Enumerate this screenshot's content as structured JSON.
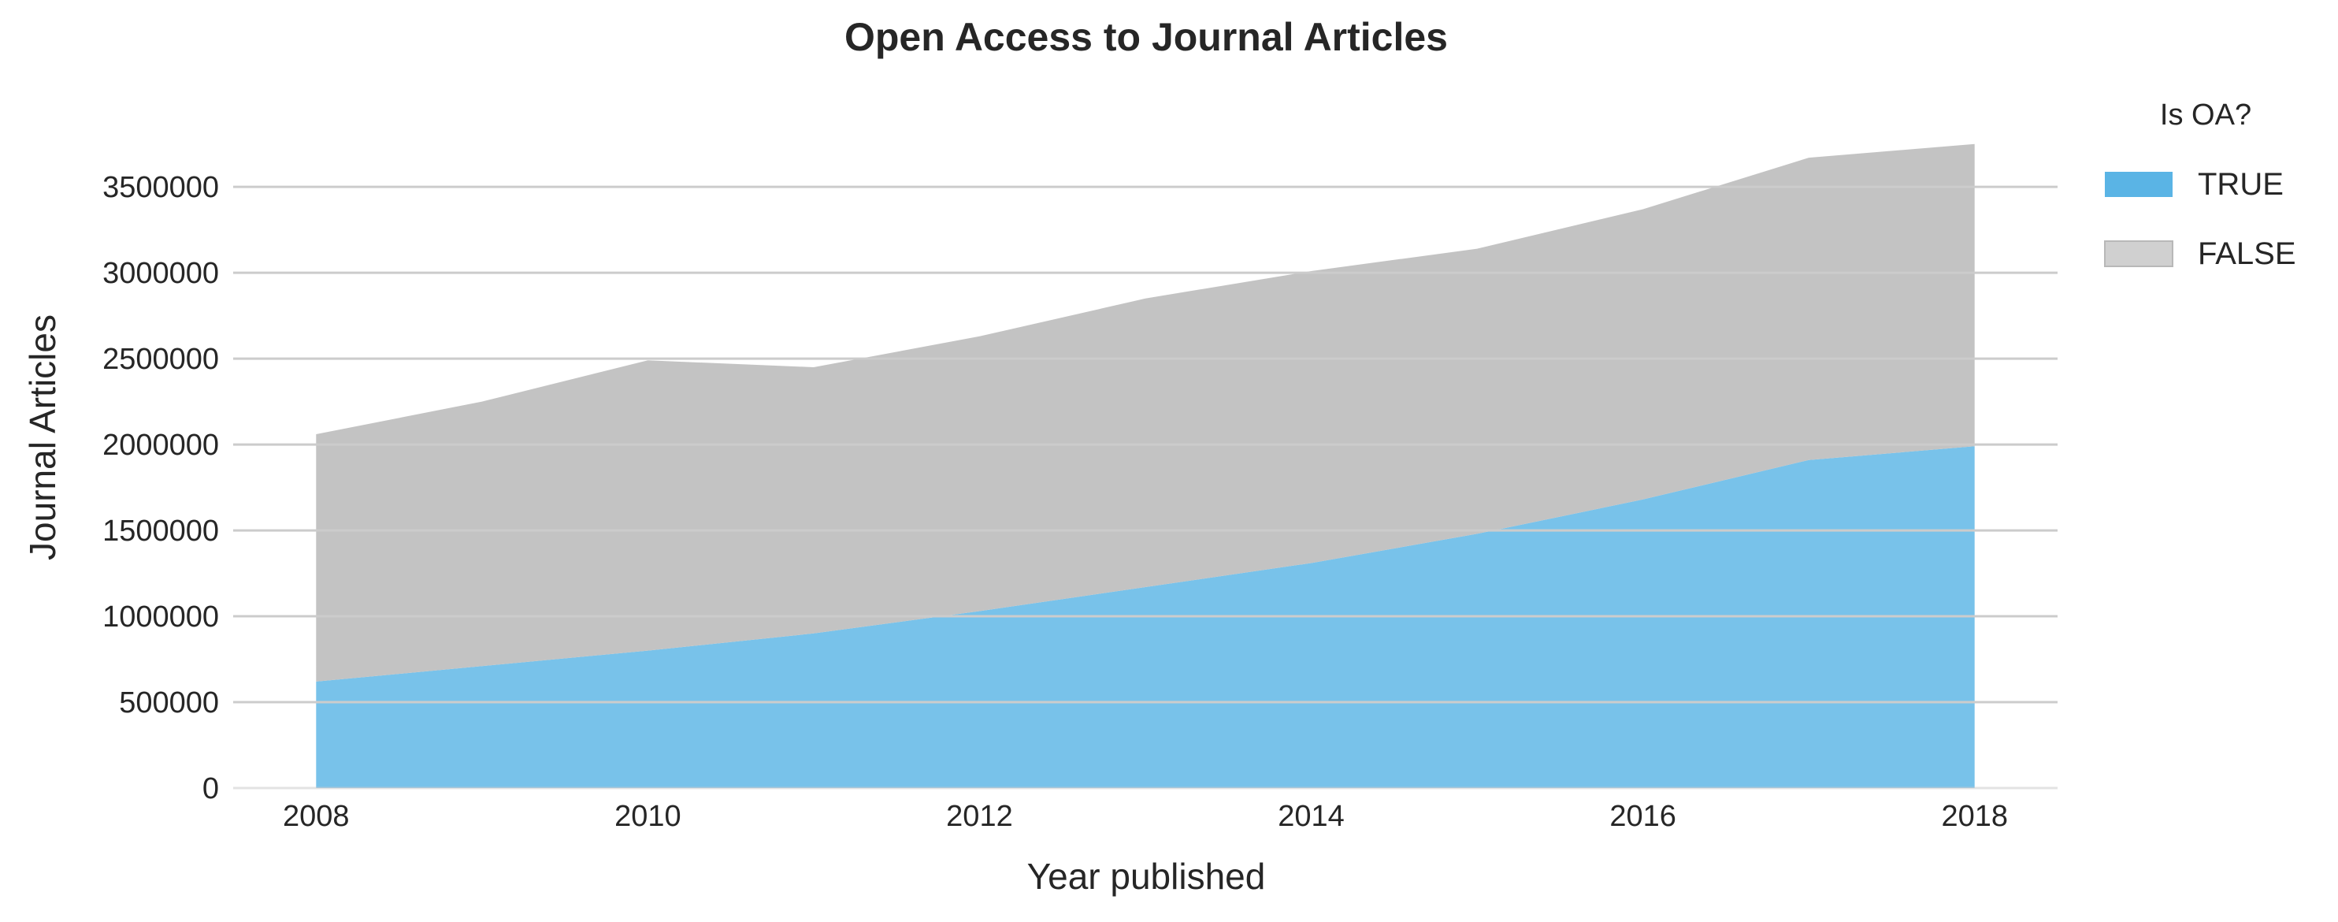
{
  "chart_data": {
    "type": "area",
    "stacked": true,
    "title": "Open Access to Journal Articles",
    "xlabel": "Year published",
    "ylabel": "Journal Articles",
    "x": [
      2008,
      2009,
      2010,
      2011,
      2012,
      2013,
      2014,
      2015,
      2016,
      2017,
      2018
    ],
    "xticks": [
      "2008",
      "2010",
      "2012",
      "2014",
      "2016",
      "2018"
    ],
    "yticks": [
      "0",
      "500000",
      "1000000",
      "1500000",
      "2000000",
      "2500000",
      "3000000",
      "3500000"
    ],
    "xlim": [
      2007.5,
      2018.5
    ],
    "ylim": [
      0,
      3900000
    ],
    "grid": "horizontal",
    "legend": {
      "title": "Is OA?",
      "placement": "right",
      "entries": [
        "TRUE",
        "FALSE"
      ]
    },
    "series": [
      {
        "name": "TRUE",
        "color": "#5ab4e5",
        "values": [
          620000,
          710000,
          800000,
          900000,
          1030000,
          1170000,
          1310000,
          1480000,
          1680000,
          1910000,
          1990000
        ]
      },
      {
        "name": "FALSE",
        "color": "#c0c0c0",
        "values": [
          1440000,
          1540000,
          1690000,
          1550000,
          1600000,
          1680000,
          1700000,
          1660000,
          1690000,
          1760000,
          1760000
        ]
      }
    ]
  }
}
